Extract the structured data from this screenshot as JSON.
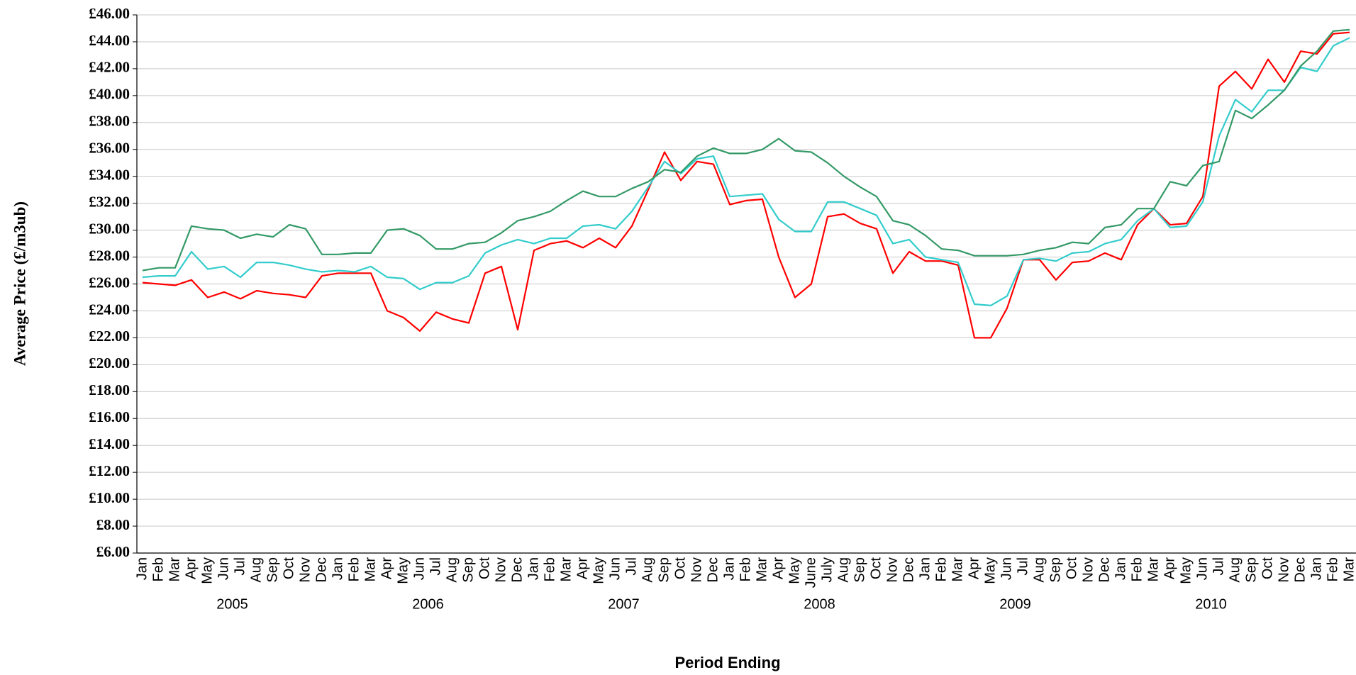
{
  "chart_data": {
    "type": "line",
    "y_label": "Average Price (£/m3ub)",
    "x_label": "Period Ending",
    "categories": [
      "Jan",
      "Feb",
      "Mar",
      "Apr",
      "May",
      "Jun",
      "Jul",
      "Aug",
      "Sep",
      "Oct",
      "Nov",
      "Dec",
      "Jan",
      "Feb",
      "Mar",
      "Apr",
      "May",
      "Jun",
      "Jul",
      "Aug",
      "Sep",
      "Oct",
      "Nov",
      "Dec",
      "Jan",
      "Feb",
      "Mar",
      "Apr",
      "May",
      "Jun",
      "Jul",
      "Aug",
      "Sep",
      "Oct",
      "Nov",
      "Dec",
      "Jan",
      "Feb",
      "Mar",
      "Apr",
      "May",
      "June",
      "July",
      "Aug",
      "Sep",
      "Oct",
      "Nov",
      "Dec",
      "Jan",
      "Feb",
      "Mar",
      "Apr",
      "May",
      "Jun",
      "Jul",
      "Aug",
      "Sep",
      "Oct",
      "Nov",
      "Dec",
      "Jan",
      "Feb",
      "Mar",
      "Apr",
      "May",
      "Jun",
      "Jul",
      "Aug",
      "Sep",
      "Oct",
      "Nov",
      "Dec",
      "Jan",
      "Feb",
      "Mar"
    ],
    "x_groups": [
      "2005",
      "2006",
      "2007",
      "2008",
      "2009",
      "2010"
    ],
    "series": [
      {
        "color": "#ff0000",
        "values": [
          26.1,
          26.0,
          25.9,
          26.3,
          25.0,
          25.4,
          24.9,
          25.5,
          25.3,
          25.2,
          25.0,
          26.6,
          26.8,
          26.8,
          26.8,
          24.0,
          23.5,
          22.5,
          23.9,
          23.4,
          23.1,
          26.8,
          27.3,
          22.6,
          28.5,
          29.0,
          29.2,
          28.7,
          29.4,
          28.7,
          30.3,
          33.0,
          35.8,
          33.7,
          35.1,
          34.9,
          31.9,
          32.2,
          32.3,
          28.0,
          25.0,
          26.0,
          31.0,
          31.2,
          30.5,
          30.1,
          26.8,
          28.4,
          27.7,
          27.7,
          27.4,
          22.0,
          22.0,
          24.2,
          27.8,
          27.8,
          26.3,
          27.6,
          27.7,
          28.3,
          27.8,
          30.4,
          31.6,
          30.4,
          30.5,
          32.5,
          40.7,
          41.8,
          40.5,
          42.7,
          41.0,
          43.3,
          43.1,
          44.6,
          44.7
        ]
      },
      {
        "color": "#33cccc",
        "values": [
          26.5,
          26.6,
          26.6,
          28.4,
          27.1,
          27.3,
          26.5,
          27.6,
          27.6,
          27.4,
          27.1,
          26.9,
          27.0,
          26.9,
          27.3,
          26.5,
          26.4,
          25.6,
          26.1,
          26.1,
          26.6,
          28.3,
          28.9,
          29.3,
          29.0,
          29.4,
          29.4,
          30.3,
          30.4,
          30.1,
          31.4,
          33.2,
          35.1,
          34.2,
          35.3,
          35.5,
          32.5,
          32.6,
          32.7,
          30.8,
          29.9,
          29.9,
          32.1,
          32.1,
          31.6,
          31.1,
          29.0,
          29.3,
          28.0,
          27.8,
          27.6,
          24.5,
          24.4,
          25.1,
          27.8,
          27.9,
          27.7,
          28.3,
          28.4,
          29.0,
          29.3,
          30.7,
          31.6,
          30.2,
          30.3,
          32.1,
          37.0,
          39.7,
          38.8,
          40.4,
          40.4,
          42.1,
          41.8,
          43.7,
          44.3
        ]
      },
      {
        "color": "#339966",
        "values": [
          27.0,
          27.2,
          27.2,
          30.3,
          30.1,
          30.0,
          29.4,
          29.7,
          29.5,
          30.4,
          30.1,
          28.2,
          28.2,
          28.3,
          28.3,
          30.0,
          30.1,
          29.6,
          28.6,
          28.6,
          29.0,
          29.1,
          29.8,
          30.7,
          31.0,
          31.4,
          32.2,
          32.9,
          32.5,
          32.5,
          33.1,
          33.6,
          34.5,
          34.3,
          35.5,
          36.1,
          35.7,
          35.7,
          36.0,
          36.8,
          35.9,
          35.8,
          35.0,
          34.0,
          33.2,
          32.5,
          30.7,
          30.4,
          29.6,
          28.6,
          28.5,
          28.1,
          28.1,
          28.1,
          28.2,
          28.5,
          28.7,
          29.1,
          29.0,
          30.2,
          30.4,
          31.6,
          31.6,
          33.6,
          33.3,
          34.8,
          35.1,
          38.9,
          38.3,
          39.3,
          40.4,
          42.2,
          43.3,
          44.8,
          44.9
        ]
      }
    ],
    "ylim": [
      6,
      46
    ],
    "yticks": [
      {
        "value": 6,
        "label": "£6.00"
      },
      {
        "value": 8,
        "label": "£8.00"
      },
      {
        "value": 10,
        "label": "£10.00"
      },
      {
        "value": 12,
        "label": "£12.00"
      },
      {
        "value": 14,
        "label": "£14.00"
      },
      {
        "value": 16,
        "label": "£16.00"
      },
      {
        "value": 18,
        "label": "£18.00"
      },
      {
        "value": 20,
        "label": "£20.00"
      },
      {
        "value": 22,
        "label": "£22.00"
      },
      {
        "value": 24,
        "label": "£24.00"
      },
      {
        "value": 26,
        "label": "£26.00"
      },
      {
        "value": 28,
        "label": "£28.00"
      },
      {
        "value": 30,
        "label": "£30.00"
      },
      {
        "value": 32,
        "label": "£32.00"
      },
      {
        "value": 34,
        "label": "£34.00"
      },
      {
        "value": 36,
        "label": "£36.00"
      },
      {
        "value": 38,
        "label": "£38.00"
      },
      {
        "value": 40,
        "label": "£40.00"
      },
      {
        "value": 42,
        "label": "£42.00"
      },
      {
        "value": 44,
        "label": "£44.00"
      },
      {
        "value": 46,
        "label": "£46.00"
      }
    ],
    "grid": true
  }
}
